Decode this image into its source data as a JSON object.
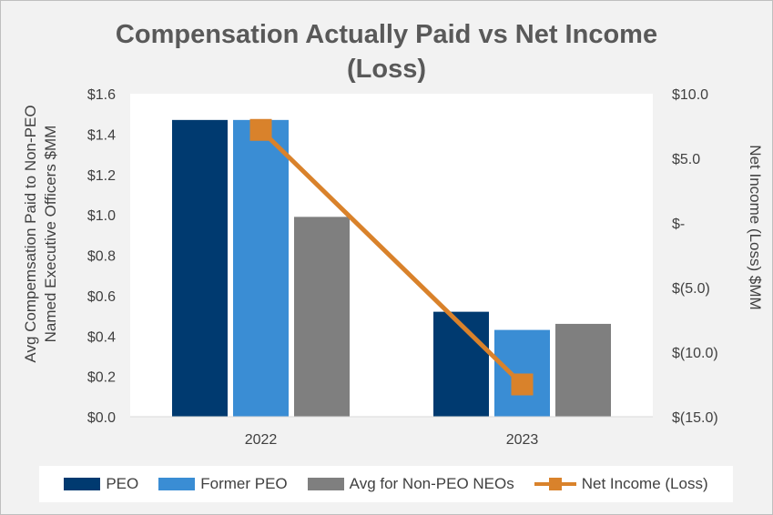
{
  "chart_data": {
    "type": "bar",
    "title_line1": "Compensation Actually Paid vs Net Income",
    "title_line2": "(Loss)",
    "categories": [
      "2022",
      "2023"
    ],
    "series": [
      {
        "name": "PEO",
        "axis": "left",
        "color": "#003a70",
        "values": [
          1.47,
          0.52
        ]
      },
      {
        "name": "Former PEO",
        "axis": "left",
        "color": "#3a8dd4",
        "values": [
          1.47,
          0.43
        ]
      },
      {
        "name": "Avg for Non-PEO NEOs",
        "axis": "left",
        "color": "#7f7f7f",
        "values": [
          0.99,
          0.46
        ]
      },
      {
        "name": "Net Income (Loss)",
        "axis": "right",
        "type": "line",
        "color": "#d9822b",
        "values": [
          7.2,
          -12.5
        ]
      }
    ],
    "ylabel_left_line1": "Avg Compemsation Paid to Non-PEO",
    "ylabel_left_line2": "Named Executive Officers  $MM",
    "ylabel_right": "Net Income (Loss)  $MM",
    "ylim_left": [
      0,
      1.6
    ],
    "ylim_right": [
      -15,
      10
    ],
    "left_ticks": [
      "$0.0",
      "$0.2",
      "$0.4",
      "$0.6",
      "$0.8",
      "$1.0",
      "$1.2",
      "$1.4",
      "$1.6"
    ],
    "right_ticks": [
      "$(15.0)",
      "$(10.0)",
      "$(5.0)",
      "$-",
      "$5.0",
      "$10.0"
    ],
    "grid": false,
    "legend_position": "bottom"
  }
}
